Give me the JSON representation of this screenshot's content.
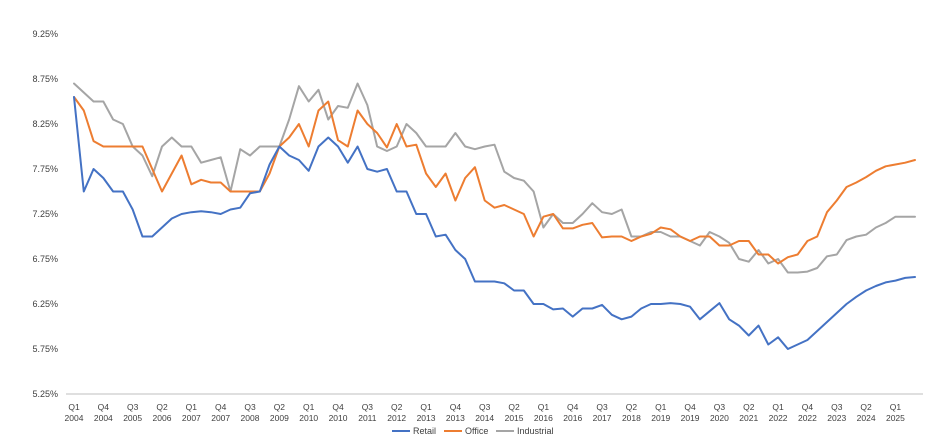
{
  "chart_data": {
    "type": "line",
    "title": "",
    "xlabel": "",
    "ylabel": "",
    "ylim": [
      5.25,
      9.25
    ],
    "y_ticks": [
      "5.25%",
      "5.75%",
      "6.25%",
      "6.75%",
      "7.25%",
      "7.75%",
      "8.25%",
      "8.75%",
      "9.25%"
    ],
    "y_tick_values": [
      5.25,
      5.75,
      6.25,
      6.75,
      7.25,
      7.75,
      8.25,
      8.75,
      9.25
    ],
    "x_tick_labels": [
      {
        "q": "Q1",
        "y": "2004"
      },
      {
        "q": "Q4",
        "y": "2004"
      },
      {
        "q": "Q3",
        "y": "2005"
      },
      {
        "q": "Q2",
        "y": "2006"
      },
      {
        "q": "Q1",
        "y": "2007"
      },
      {
        "q": "Q4",
        "y": "2007"
      },
      {
        "q": "Q3",
        "y": "2008"
      },
      {
        "q": "Q2",
        "y": "2009"
      },
      {
        "q": "Q1",
        "y": "2010"
      },
      {
        "q": "Q4",
        "y": "2010"
      },
      {
        "q": "Q3",
        "y": "2011"
      },
      {
        "q": "Q2",
        "y": "2012"
      },
      {
        "q": "Q1",
        "y": "2013"
      },
      {
        "q": "Q4",
        "y": "2013"
      },
      {
        "q": "Q3",
        "y": "2014"
      },
      {
        "q": "Q2",
        "y": "2015"
      },
      {
        "q": "Q1",
        "y": "2016"
      },
      {
        "q": "Q4",
        "y": "2016"
      },
      {
        "q": "Q3",
        "y": "2017"
      },
      {
        "q": "Q2",
        "y": "2018"
      },
      {
        "q": "Q1",
        "y": "2019"
      },
      {
        "q": "Q4",
        "y": "2019"
      },
      {
        "q": "Q3",
        "y": "2020"
      },
      {
        "q": "Q2",
        "y": "2021"
      },
      {
        "q": "Q1",
        "y": "2022"
      },
      {
        "q": "Q4",
        "y": "2022"
      },
      {
        "q": "Q3",
        "y": "2023"
      },
      {
        "q": "Q2",
        "y": "2024"
      },
      {
        "q": "Q1",
        "y": "2025"
      }
    ],
    "grid": false,
    "legend_position": "bottom",
    "series": [
      {
        "name": "Retail",
        "color": "#4472C4",
        "values": [
          8.55,
          7.5,
          7.75,
          7.65,
          7.5,
          7.5,
          7.3,
          7.0,
          7.0,
          7.1,
          7.2,
          7.25,
          7.27,
          7.28,
          7.27,
          7.25,
          7.3,
          7.32,
          7.48,
          7.5,
          7.8,
          8.0,
          7.9,
          7.85,
          7.73,
          8.0,
          8.1,
          8.0,
          7.82,
          8.0,
          7.75,
          7.72,
          7.75,
          7.5,
          7.5,
          7.25,
          7.25,
          7.0,
          7.02,
          6.85,
          6.75,
          6.5,
          6.5,
          6.5,
          6.48,
          6.4,
          6.4,
          6.25,
          6.25,
          6.19,
          6.2,
          6.11,
          6.2,
          6.2,
          6.24,
          6.13,
          6.08,
          6.11,
          6.2,
          6.25,
          6.25,
          6.26,
          6.25,
          6.22,
          6.08,
          6.17,
          6.26,
          6.08,
          6.01,
          5.9,
          6.01,
          5.8,
          5.88,
          5.75,
          5.8,
          5.85,
          5.95,
          6.05,
          6.15,
          6.25,
          6.33,
          6.4,
          6.45,
          6.49,
          6.51,
          6.54,
          6.55
        ]
      },
      {
        "name": "Office",
        "color": "#ED7D31",
        "values": [
          8.55,
          8.4,
          8.06,
          8.0,
          8.0,
          8.0,
          8.0,
          8.0,
          7.75,
          7.5,
          7.7,
          7.9,
          7.58,
          7.63,
          7.6,
          7.6,
          7.5,
          7.5,
          7.5,
          7.5,
          7.7,
          8.0,
          8.1,
          8.25,
          8.0,
          8.4,
          8.5,
          8.07,
          8.0,
          8.4,
          8.25,
          8.15,
          7.99,
          8.25,
          8.0,
          8.02,
          7.7,
          7.55,
          7.7,
          7.4,
          7.65,
          7.77,
          7.4,
          7.32,
          7.35,
          7.3,
          7.25,
          7.0,
          7.22,
          7.25,
          7.09,
          7.09,
          7.13,
          7.15,
          6.99,
          7.0,
          7.0,
          6.95,
          7.0,
          7.03,
          7.1,
          7.08,
          7.0,
          6.95,
          7.0,
          7.0,
          6.9,
          6.9,
          6.95,
          6.95,
          6.8,
          6.8,
          6.7,
          6.77,
          6.8,
          6.95,
          7.0,
          7.27,
          7.4,
          7.55,
          7.6,
          7.66,
          7.73,
          7.78,
          7.8,
          7.82,
          7.85
        ]
      },
      {
        "name": "Industrial",
        "color": "#A5A5A5",
        "values": [
          8.7,
          8.6,
          8.5,
          8.5,
          8.3,
          8.25,
          8.0,
          7.9,
          7.67,
          8.0,
          8.1,
          8.0,
          8.0,
          7.82,
          7.85,
          7.88,
          7.5,
          7.97,
          7.9,
          8.0,
          8.0,
          8.0,
          8.3,
          8.67,
          8.5,
          8.63,
          8.3,
          8.45,
          8.43,
          8.7,
          8.46,
          8.0,
          7.95,
          8.0,
          8.25,
          8.15,
          8.0,
          8.0,
          8.0,
          8.15,
          8.0,
          7.97,
          8.0,
          8.02,
          7.72,
          7.65,
          7.62,
          7.5,
          7.1,
          7.25,
          7.15,
          7.15,
          7.25,
          7.37,
          7.27,
          7.25,
          7.3,
          7.0,
          7.0,
          7.05,
          7.05,
          7.0,
          7.0,
          6.95,
          6.9,
          7.05,
          7.0,
          6.93,
          6.75,
          6.72,
          6.85,
          6.7,
          6.75,
          6.6,
          6.6,
          6.61,
          6.65,
          6.78,
          6.8,
          6.96,
          7.0,
          7.02,
          7.1,
          7.15,
          7.22,
          7.22,
          7.22
        ]
      }
    ]
  }
}
